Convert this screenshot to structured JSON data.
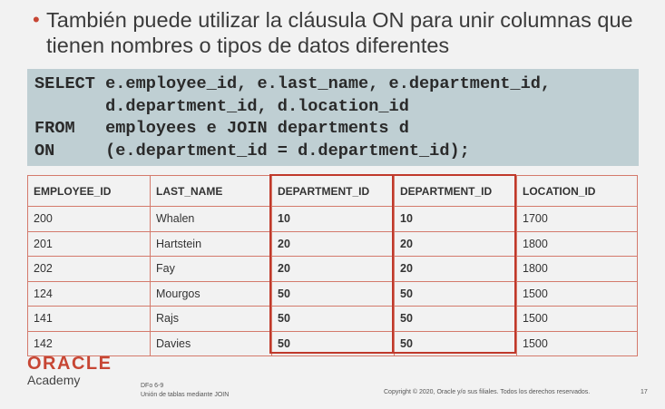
{
  "bullet": {
    "text": "También puede utilizar la cláusula ON para unir columnas que tienen nombres o tipos de datos diferentes"
  },
  "code": {
    "lines": [
      "SELECT e.employee_id, e.last_name, e.department_id,",
      "       d.department_id, d.location_id",
      "FROM   employees e JOIN departments d",
      "ON     (e.department_id = d.department_id);"
    ]
  },
  "table": {
    "headers": [
      "EMPLOYEE_ID",
      "LAST_NAME",
      "DEPARTMENT_ID",
      "DEPARTMENT_ID",
      "LOCATION_ID"
    ],
    "rows": [
      [
        "200",
        "Whalen",
        "10",
        "10",
        "1700"
      ],
      [
        "201",
        "Hartstein",
        "20",
        "20",
        "1800"
      ],
      [
        "202",
        "Fay",
        "20",
        "20",
        "1800"
      ],
      [
        "124",
        "Mourgos",
        "50",
        "50",
        "1500"
      ],
      [
        "141",
        "Rajs",
        "50",
        "50",
        "1500"
      ],
      [
        "142",
        "Davies",
        "50",
        "50",
        "1500"
      ]
    ],
    "highlight_color": "#c0392b"
  },
  "footer": {
    "logo": "ORACLE",
    "academy": "Academy",
    "course_code": "DFo 6-9",
    "course_title": "Unión de tablas mediante JOIN",
    "copyright": "Copyright © 2020, Oracle y/o sus filiales. Todos los derechos reservados.",
    "page_number": "17"
  },
  "colors": {
    "accent": "#c74634",
    "code_background": "#bfcfd3"
  }
}
